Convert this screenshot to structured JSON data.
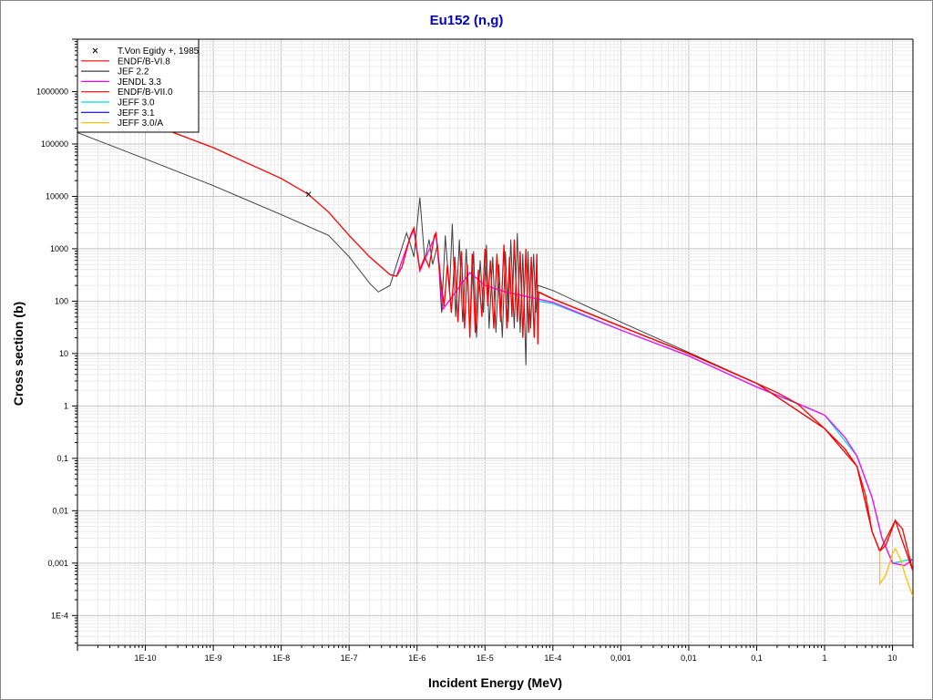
{
  "chart_data": {
    "type": "line",
    "title": "Eu152 (n,g)",
    "xlabel": "Incident Energy (MeV)",
    "ylabel": "Cross section (b)",
    "xscale": "log",
    "yscale": "log",
    "xlim": [
      1e-11,
      20
    ],
    "ylim": [
      2.7e-05,
      10000000.0
    ],
    "grid": true,
    "legend_position": "top-left",
    "x_ticks": [
      [
        1e-10,
        "1E-10"
      ],
      [
        1e-09,
        "1E-9"
      ],
      [
        1e-08,
        "1E-8"
      ],
      [
        1e-07,
        "1E-7"
      ],
      [
        1e-06,
        "1E-6"
      ],
      [
        1e-05,
        "1E-5"
      ],
      [
        0.0001,
        "1E-4"
      ],
      [
        0.001,
        "0,001"
      ],
      [
        0.01,
        "0,01"
      ],
      [
        0.1,
        "0,1"
      ],
      [
        1,
        "1"
      ],
      [
        10,
        "10"
      ]
    ],
    "y_ticks": [
      [
        1000000.0,
        "1000000"
      ],
      [
        100000.0,
        "100000"
      ],
      [
        10000.0,
        "10000"
      ],
      [
        1000,
        "1000"
      ],
      [
        100,
        "100"
      ],
      [
        10,
        "10"
      ],
      [
        1,
        "1"
      ],
      [
        0.1,
        "0,1"
      ],
      [
        0.01,
        "0,01"
      ],
      [
        0.001,
        "0,001"
      ],
      [
        0.0001,
        "1E-4"
      ]
    ],
    "experimental": [
      {
        "name": "T.Von Egidy +, 1985",
        "marker": "x",
        "color": "#000000",
        "points": [
          [
            2.53e-08,
            11000
          ]
        ]
      }
    ],
    "series": [
      {
        "name": "ENDF/B-VI.8",
        "color": "#ff0000",
        "points": [
          [
            1e-10,
            350000.0
          ],
          [
            2.6e-10,
            165000.0
          ],
          [
            1e-09,
            85000.0
          ],
          [
            1e-08,
            22000.0
          ],
          [
            2.5e-08,
            11000.0
          ],
          [
            5e-08,
            5000
          ],
          [
            1e-07,
            1800
          ],
          [
            2e-07,
            700
          ],
          [
            4e-07,
            320
          ],
          [
            5e-07,
            300
          ],
          [
            6e-07,
            450
          ],
          [
            8e-07,
            1800
          ],
          [
            9e-07,
            2500
          ],
          [
            1e-06,
            900
          ],
          [
            1.1e-06,
            400
          ],
          [
            1.3e-06,
            700
          ],
          [
            1.5e-06,
            450
          ],
          [
            1.8e-06,
            1800
          ],
          [
            1.9e-06,
            2000
          ],
          [
            2.2e-06,
            300
          ],
          [
            2.5e-06,
            80
          ],
          [
            2.8e-06,
            500
          ],
          [
            3.2e-06,
            60
          ],
          [
            3.6e-06,
            700
          ],
          [
            4e-06,
            40
          ],
          [
            4.5e-06,
            900
          ],
          [
            5e-06,
            30
          ],
          [
            5.5e-06,
            500
          ],
          [
            6e-06,
            20
          ],
          [
            6.5e-06,
            800
          ],
          [
            7.2e-06,
            25
          ],
          [
            8e-06,
            400
          ],
          [
            9e-06,
            50
          ],
          [
            1e-05,
            1000
          ],
          [
            1.1e-05,
            80
          ],
          [
            1.2e-05,
            600
          ],
          [
            1.35e-05,
            30
          ],
          [
            1.5e-05,
            800
          ],
          [
            1.7e-05,
            40
          ],
          [
            1.9e-05,
            1200
          ],
          [
            2.1e-05,
            30
          ],
          [
            2.3e-05,
            700
          ],
          [
            2.5e-05,
            50
          ],
          [
            2.7e-05,
            1500
          ],
          [
            3e-05,
            40
          ],
          [
            3.3e-05,
            900
          ],
          [
            3.6e-05,
            20
          ],
          [
            4e-05,
            1000
          ],
          [
            4.4e-05,
            25
          ],
          [
            4.8e-05,
            700
          ],
          [
            5.3e-05,
            20
          ],
          [
            5.8e-05,
            800
          ],
          [
            6e-05,
            15
          ],
          [
            6.2e-05,
            150
          ],
          [
            0.0001,
            110
          ],
          [
            0.001,
            33
          ],
          [
            0.01,
            10
          ],
          [
            0.1,
            2.7
          ],
          [
            0.2,
            1.8
          ],
          [
            0.4,
            1.1
          ],
          [
            1,
            0.37
          ],
          [
            2,
            0.15
          ],
          [
            3,
            0.07
          ],
          [
            4,
            0.02
          ],
          [
            5,
            0.004
          ],
          [
            6.5,
            0.0017
          ],
          [
            8,
            0.0022
          ],
          [
            11,
            0.0065
          ],
          [
            14,
            0.0045
          ],
          [
            20,
            0.0007
          ]
        ]
      },
      {
        "name": "JEF 2.2",
        "color": "#404040",
        "points": [
          [
            1e-11,
            165000.0
          ],
          [
            1e-10,
            52000.0
          ],
          [
            1e-09,
            16000.0
          ],
          [
            1e-08,
            4500
          ],
          [
            5e-08,
            1800
          ],
          [
            1e-07,
            700
          ],
          [
            2e-07,
            220
          ],
          [
            2.7e-07,
            150
          ],
          [
            4e-07,
            200
          ],
          [
            5e-07,
            500
          ],
          [
            7e-07,
            2000
          ],
          [
            8e-07,
            1200
          ],
          [
            9e-07,
            700
          ],
          [
            1.1e-06,
            9500
          ],
          [
            1.3e-06,
            600
          ],
          [
            1.5e-06,
            1500
          ],
          [
            1.7e-06,
            500
          ],
          [
            2e-06,
            1200
          ],
          [
            2.3e-06,
            60
          ],
          [
            2.6e-06,
            1800
          ],
          [
            3e-06,
            150
          ],
          [
            3.3e-06,
            3000
          ],
          [
            3.7e-06,
            50
          ],
          [
            4.2e-06,
            1500
          ],
          [
            4.7e-06,
            40
          ],
          [
            5.3e-06,
            1000
          ],
          [
            6e-06,
            30
          ],
          [
            6.8e-06,
            900
          ],
          [
            7.5e-06,
            20
          ],
          [
            8.5e-06,
            600
          ],
          [
            9.5e-06,
            60
          ],
          [
            1.05e-05,
            1200
          ],
          [
            1.15e-05,
            30
          ],
          [
            1.3e-05,
            700
          ],
          [
            1.45e-05,
            25
          ],
          [
            1.6e-05,
            500
          ],
          [
            1.8e-05,
            20
          ],
          [
            2e-05,
            900
          ],
          [
            2.2e-05,
            40
          ],
          [
            2.4e-05,
            1500
          ],
          [
            2.7e-05,
            30
          ],
          [
            3e-05,
            2000
          ],
          [
            3.3e-05,
            25
          ],
          [
            3.6e-05,
            800
          ],
          [
            4e-05,
            6
          ],
          [
            4.3e-05,
            900
          ],
          [
            4.7e-05,
            30
          ],
          [
            5.2e-05,
            800
          ],
          [
            5.6e-05,
            60
          ],
          [
            6e-05,
            200
          ],
          [
            0.0001,
            160
          ],
          [
            0.001,
            40
          ],
          [
            0.01,
            10.5
          ],
          [
            0.1,
            2.7
          ],
          [
            1,
            0.37
          ],
          [
            3,
            0.07
          ],
          [
            5,
            0.004
          ],
          [
            6.5,
            0.0017
          ],
          [
            11,
            0.0065
          ],
          [
            20,
            0.0007
          ]
        ]
      },
      {
        "name": "JENDL 3.3",
        "color": "#ff00ff",
        "points": [
          [
            4e-07,
            320
          ],
          [
            5e-07,
            300
          ],
          [
            8e-07,
            1700
          ],
          [
            9e-07,
            2300
          ],
          [
            1.1e-06,
            380
          ],
          [
            1.9e-06,
            1900
          ],
          [
            2.4e-06,
            70
          ],
          [
            6e-06,
            350
          ],
          [
            1e-05,
            200
          ],
          [
            2e-05,
            150
          ],
          [
            6e-05,
            110
          ],
          [
            0.0001,
            95
          ],
          [
            0.001,
            28
          ],
          [
            0.01,
            9
          ],
          [
            0.1,
            2.3
          ],
          [
            0.3,
            1.3
          ],
          [
            1,
            0.67
          ],
          [
            2,
            0.25
          ],
          [
            3,
            0.11
          ],
          [
            5,
            0.018
          ],
          [
            7,
            0.003
          ],
          [
            10,
            0.001
          ],
          [
            15,
            0.0009
          ],
          [
            20,
            0.0012
          ]
        ]
      },
      {
        "name": "ENDF/B-VII.0",
        "color": "#ff0000",
        "points": [
          [
            6e-05,
            150
          ],
          [
            0.0001,
            110
          ],
          [
            0.001,
            33
          ],
          [
            0.01,
            10
          ],
          [
            0.1,
            2.7
          ],
          [
            1,
            0.37
          ],
          [
            3,
            0.07
          ],
          [
            5,
            0.004
          ],
          [
            6.5,
            0.0017
          ],
          [
            11,
            0.0065
          ],
          [
            20,
            0.0007
          ]
        ]
      },
      {
        "name": "JEFF 3.0",
        "color": "#00e0e0",
        "points": [
          [
            6e-05,
            100
          ],
          [
            0.0001,
            90
          ],
          [
            0.001,
            28
          ],
          [
            0.01,
            9
          ],
          [
            0.1,
            2.3
          ],
          [
            1,
            0.67
          ],
          [
            3,
            0.11
          ],
          [
            5,
            0.018
          ],
          [
            7,
            0.003
          ],
          [
            10,
            0.001
          ],
          [
            20,
            0.0012
          ]
        ]
      },
      {
        "name": "JEFF 3.1",
        "color": "#0000ff",
        "points": []
      },
      {
        "name": "JEFF 3.0/A",
        "color": "#ffc000",
        "points": [
          [
            6.5,
            0.0017
          ],
          [
            6.5,
            0.0004
          ],
          [
            8,
            0.0006
          ],
          [
            10,
            0.0015
          ],
          [
            11,
            0.0019
          ],
          [
            13,
            0.0012
          ],
          [
            16,
            0.0005
          ],
          [
            20,
            0.00023
          ]
        ]
      }
    ]
  }
}
